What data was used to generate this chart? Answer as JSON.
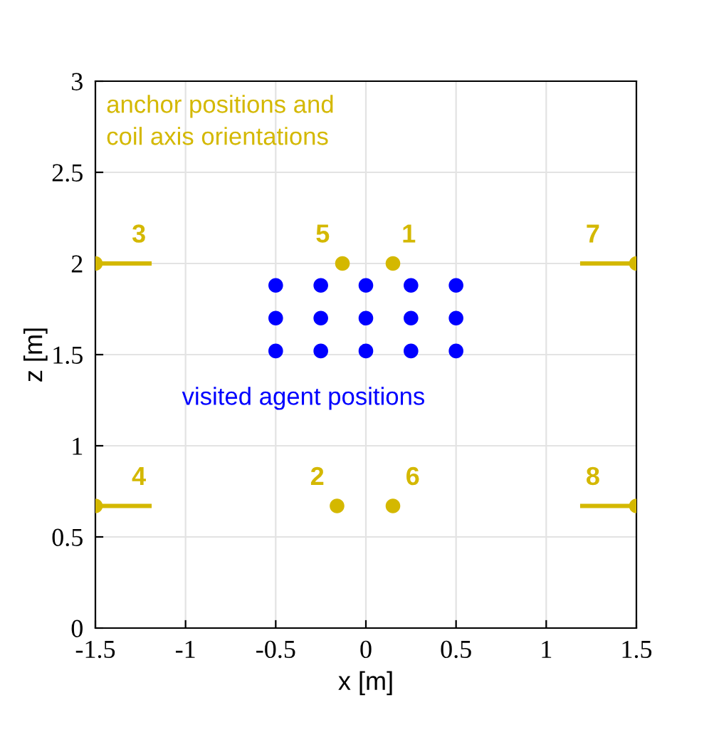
{
  "chart_data": {
    "type": "scatter",
    "xlabel": "x [m]",
    "ylabel": "z [m]",
    "xlim": [
      -1.5,
      1.5
    ],
    "ylim": [
      0,
      3
    ],
    "xticks": [
      -1.5,
      -1,
      -0.5,
      0,
      0.5,
      1,
      1.5
    ],
    "yticks": [
      0,
      0.5,
      1,
      1.5,
      2,
      2.5,
      3
    ],
    "grid": true,
    "series": [
      {
        "marker": "circle",
        "color": "#0000ff",
        "x": [
          -0.5,
          -0.25,
          0,
          0.25,
          0.5,
          -0.5,
          -0.25,
          0,
          0.25,
          0.5,
          -0.5,
          -0.25,
          0,
          0.25,
          0.5
        ],
        "values": [
          1.88,
          1.88,
          1.88,
          1.88,
          1.88,
          1.7,
          1.7,
          1.7,
          1.7,
          1.7,
          1.52,
          1.52,
          1.52,
          1.52,
          1.52
        ]
      },
      {
        "marker": "circle",
        "color": "#d4b800",
        "x": [
          0.15,
          -0.16,
          -1.5,
          -1.5,
          -0.13,
          0.15,
          1.5,
          1.5
        ],
        "values": [
          2.0,
          0.67,
          2.0,
          0.67,
          2.0,
          0.67,
          2.0,
          0.67
        ]
      },
      {
        "type": "line",
        "marker": "none",
        "color": "#d4b800",
        "x": [
          -1.5,
          -1.2
        ],
        "values": [
          2.0,
          2.0
        ]
      },
      {
        "type": "line",
        "marker": "none",
        "color": "#d4b800",
        "x": [
          -1.5,
          -1.2
        ],
        "values": [
          0.67,
          0.67
        ]
      },
      {
        "type": "line",
        "marker": "none",
        "color": "#d4b800",
        "x": [
          1.2,
          1.5
        ],
        "values": [
          2.0,
          2.0
        ]
      },
      {
        "type": "line",
        "marker": "none",
        "color": "#d4b800",
        "x": [
          1.2,
          1.5
        ],
        "values": [
          0.67,
          0.67
        ]
      }
    ],
    "annotations": [
      "anchor positions and\ncoil axis orientations",
      "visited agent positions",
      "1",
      "2",
      "3",
      "4",
      "5",
      "6",
      "7",
      "8"
    ]
  }
}
